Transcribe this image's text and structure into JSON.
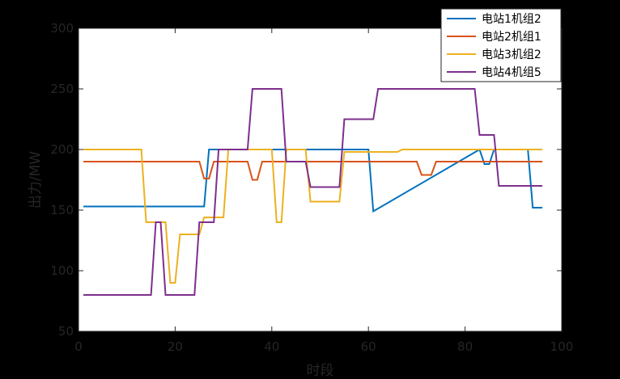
{
  "chart_data": {
    "type": "line",
    "xlabel": "时段",
    "ylabel": "出力/MW",
    "xlim": [
      0,
      100
    ],
    "ylim": [
      50,
      300
    ],
    "xticks": [
      0,
      20,
      40,
      60,
      80,
      100
    ],
    "yticks": [
      50,
      100,
      150,
      200,
      250,
      300
    ],
    "grid": false,
    "legend_position": "top-right",
    "series": [
      {
        "name": "电站1机组2",
        "color": "#0072BD",
        "x": [
          1,
          26,
          27,
          60,
          61,
          83,
          84,
          85,
          86,
          93,
          94,
          95,
          96
        ],
        "y": [
          153,
          153,
          200,
          200,
          149,
          200,
          188,
          188,
          200,
          200,
          152,
          152,
          152
        ]
      },
      {
        "name": "电站2机组1",
        "color": "#D95319",
        "x": [
          1,
          25,
          26,
          27,
          28,
          35,
          36,
          37,
          38,
          70,
          71,
          72,
          73,
          74,
          96
        ],
        "y": [
          190,
          190,
          176,
          176,
          190,
          190,
          175,
          175,
          190,
          190,
          179,
          179,
          179,
          190,
          190
        ]
      },
      {
        "name": "电站3机组2",
        "color": "#EDB120",
        "x": [
          1,
          13,
          14,
          18,
          19,
          20,
          21,
          25,
          26,
          30,
          31,
          40,
          41,
          42,
          43,
          47,
          48,
          54,
          55,
          66,
          67,
          96
        ],
        "y": [
          200,
          200,
          140,
          140,
          90,
          90,
          130,
          130,
          144,
          144,
          200,
          200,
          140,
          140,
          200,
          200,
          157,
          157,
          198,
          198,
          200,
          200
        ]
      },
      {
        "name": "电站4机组5",
        "color": "#7E2F8E",
        "x": [
          1,
          15,
          16,
          17,
          18,
          24,
          25,
          28,
          29,
          35,
          36,
          42,
          43,
          47,
          48,
          54,
          55,
          61,
          62,
          82,
          83,
          86,
          87,
          96
        ],
        "y": [
          80,
          80,
          140,
          140,
          80,
          80,
          140,
          140,
          200,
          200,
          250,
          250,
          190,
          190,
          169,
          169,
          225,
          225,
          250,
          250,
          212,
          212,
          170,
          170
        ]
      }
    ]
  }
}
